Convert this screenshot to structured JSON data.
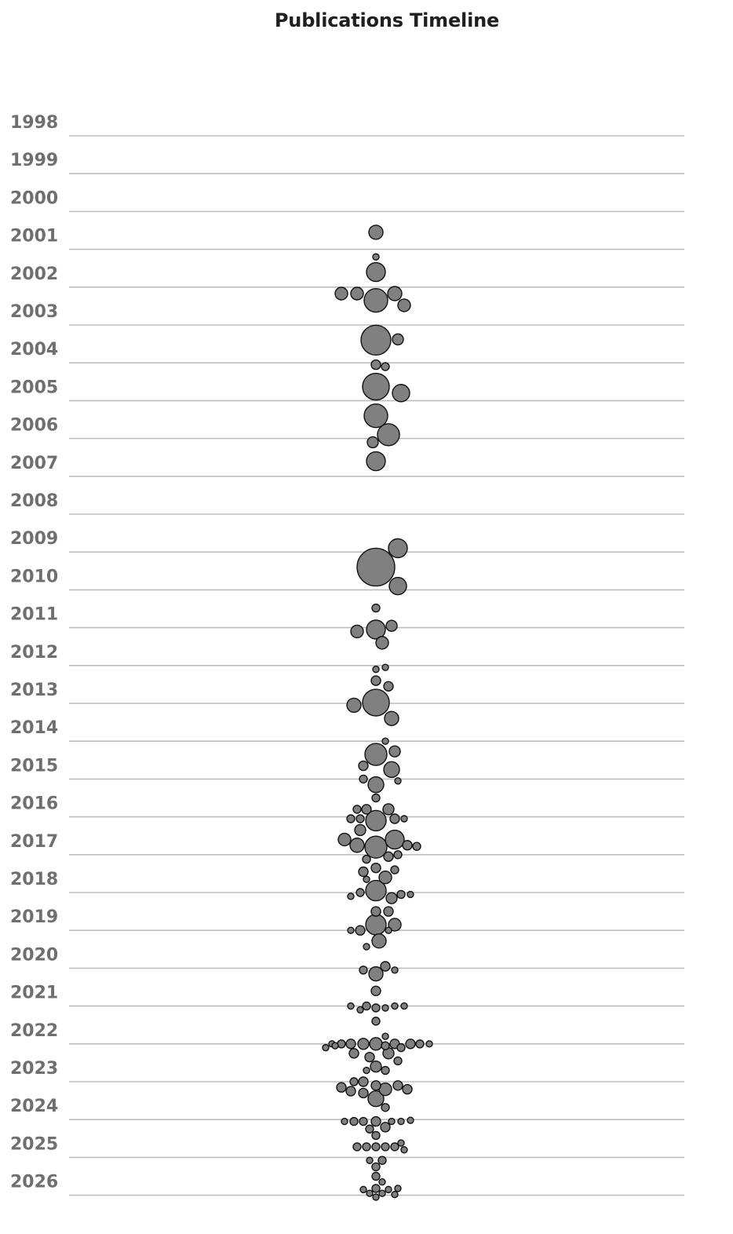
{
  "chart_data": {
    "type": "scatter",
    "subtype": "beeswarm",
    "title": "Publications Timeline",
    "y_axis": {
      "categories": [
        "1998",
        "1999",
        "2000",
        "2001",
        "2002",
        "2003",
        "2004",
        "2005",
        "2006",
        "2007",
        "2008",
        "2009",
        "2010",
        "2011",
        "2012",
        "2013",
        "2014",
        "2015",
        "2016",
        "2017",
        "2018",
        "2019",
        "2020",
        "2021",
        "2022",
        "2023",
        "2024",
        "2025",
        "2026"
      ],
      "range": [
        1998,
        2026
      ]
    },
    "grid": true,
    "legend": "none",
    "colors": {
      "bubble_fill": "#808080",
      "bubble_stroke": "#111111",
      "grid": "#bdbdbd",
      "label": "#6f6f6f"
    },
    "points": [
      {
        "year": 2000.55,
        "offset": 0,
        "size": 9
      },
      {
        "year": 2001.2,
        "offset": 0,
        "size": 4
      },
      {
        "year": 2001.6,
        "offset": 0,
        "size": 12
      },
      {
        "year": 2002.17,
        "offset": -44,
        "size": 8
      },
      {
        "year": 2002.17,
        "offset": -24,
        "size": 8
      },
      {
        "year": 2002.17,
        "offset": 24,
        "size": 9
      },
      {
        "year": 2002.35,
        "offset": 0,
        "size": 15
      },
      {
        "year": 2002.48,
        "offset": 36,
        "size": 8
      },
      {
        "year": 2003.4,
        "offset": 0,
        "size": 19
      },
      {
        "year": 2003.38,
        "offset": 28,
        "size": 7
      },
      {
        "year": 2004.05,
        "offset": 0,
        "size": 6
      },
      {
        "year": 2004.1,
        "offset": 12,
        "size": 5
      },
      {
        "year": 2004.63,
        "offset": 0,
        "size": 17
      },
      {
        "year": 2004.8,
        "offset": 32,
        "size": 11
      },
      {
        "year": 2005.4,
        "offset": 0,
        "size": 15
      },
      {
        "year": 2005.9,
        "offset": 16,
        "size": 14
      },
      {
        "year": 2006.1,
        "offset": -4,
        "size": 7
      },
      {
        "year": 2006.6,
        "offset": 0,
        "size": 12
      },
      {
        "year": 2008.9,
        "offset": 28,
        "size": 12
      },
      {
        "year": 2009.4,
        "offset": 0,
        "size": 24
      },
      {
        "year": 2009.9,
        "offset": 28,
        "size": 11
      },
      {
        "year": 2010.48,
        "offset": 0,
        "size": 5
      },
      {
        "year": 2010.95,
        "offset": 20,
        "size": 7
      },
      {
        "year": 2011.05,
        "offset": 0,
        "size": 12
      },
      {
        "year": 2011.1,
        "offset": -24,
        "size": 8
      },
      {
        "year": 2011.4,
        "offset": 8,
        "size": 8
      },
      {
        "year": 2012.05,
        "offset": 12,
        "size": 4
      },
      {
        "year": 2012.1,
        "offset": 0,
        "size": 4
      },
      {
        "year": 2012.4,
        "offset": 0,
        "size": 6
      },
      {
        "year": 2012.55,
        "offset": 16,
        "size": 6
      },
      {
        "year": 2012.98,
        "offset": 0,
        "size": 17
      },
      {
        "year": 2013.05,
        "offset": -28,
        "size": 9
      },
      {
        "year": 2013.4,
        "offset": 20,
        "size": 9
      },
      {
        "year": 2014.0,
        "offset": 12,
        "size": 4
      },
      {
        "year": 2014.27,
        "offset": 24,
        "size": 7
      },
      {
        "year": 2014.35,
        "offset": 0,
        "size": 14
      },
      {
        "year": 2014.65,
        "offset": -16,
        "size": 6
      },
      {
        "year": 2014.75,
        "offset": 20,
        "size": 10
      },
      {
        "year": 2015.0,
        "offset": -16,
        "size": 5
      },
      {
        "year": 2015.05,
        "offset": 28,
        "size": 4
      },
      {
        "year": 2015.15,
        "offset": 0,
        "size": 10
      },
      {
        "year": 2015.5,
        "offset": 0,
        "size": 5
      },
      {
        "year": 2015.8,
        "offset": -24,
        "size": 5
      },
      {
        "year": 2015.8,
        "offset": -12,
        "size": 6
      },
      {
        "year": 2015.8,
        "offset": 16,
        "size": 7
      },
      {
        "year": 2016.05,
        "offset": -32,
        "size": 5
      },
      {
        "year": 2016.05,
        "offset": -20,
        "size": 5
      },
      {
        "year": 2016.05,
        "offset": 24,
        "size": 6
      },
      {
        "year": 2016.05,
        "offset": 36,
        "size": 4
      },
      {
        "year": 2016.1,
        "offset": 0,
        "size": 13
      },
      {
        "year": 2016.35,
        "offset": -20,
        "size": 7
      },
      {
        "year": 2016.6,
        "offset": -40,
        "size": 8
      },
      {
        "year": 2016.6,
        "offset": 24,
        "size": 12
      },
      {
        "year": 2016.75,
        "offset": -24,
        "size": 9
      },
      {
        "year": 2016.8,
        "offset": 0,
        "size": 14
      },
      {
        "year": 2016.75,
        "offset": 40,
        "size": 6
      },
      {
        "year": 2016.78,
        "offset": 52,
        "size": 5
      },
      {
        "year": 2017.0,
        "offset": 28,
        "size": 5
      },
      {
        "year": 2017.05,
        "offset": 16,
        "size": 6
      },
      {
        "year": 2017.12,
        "offset": -12,
        "size": 5
      },
      {
        "year": 2017.35,
        "offset": 0,
        "size": 6
      },
      {
        "year": 2017.4,
        "offset": 24,
        "size": 5
      },
      {
        "year": 2017.45,
        "offset": -16,
        "size": 6
      },
      {
        "year": 2017.6,
        "offset": 12,
        "size": 8
      },
      {
        "year": 2017.65,
        "offset": -12,
        "size": 4
      },
      {
        "year": 2017.95,
        "offset": 0,
        "size": 13
      },
      {
        "year": 2018.0,
        "offset": -20,
        "size": 5
      },
      {
        "year": 2018.05,
        "offset": 32,
        "size": 5
      },
      {
        "year": 2018.05,
        "offset": 44,
        "size": 4
      },
      {
        "year": 2018.1,
        "offset": -32,
        "size": 4
      },
      {
        "year": 2018.15,
        "offset": 20,
        "size": 7
      },
      {
        "year": 2018.5,
        "offset": 0,
        "size": 6
      },
      {
        "year": 2018.5,
        "offset": 16,
        "size": 6
      },
      {
        "year": 2018.85,
        "offset": 24,
        "size": 8
      },
      {
        "year": 2018.85,
        "offset": 0,
        "size": 13
      },
      {
        "year": 2019.0,
        "offset": -20,
        "size": 6
      },
      {
        "year": 2019.0,
        "offset": -32,
        "size": 4
      },
      {
        "year": 2019.0,
        "offset": 16,
        "size": 4
      },
      {
        "year": 2019.28,
        "offset": 4,
        "size": 9
      },
      {
        "year": 2019.43,
        "offset": -12,
        "size": 4
      },
      {
        "year": 2019.95,
        "offset": 12,
        "size": 6
      },
      {
        "year": 2020.05,
        "offset": -16,
        "size": 5
      },
      {
        "year": 2020.05,
        "offset": 24,
        "size": 4
      },
      {
        "year": 2020.15,
        "offset": 0,
        "size": 9
      },
      {
        "year": 2020.6,
        "offset": 0,
        "size": 6
      },
      {
        "year": 2021.0,
        "offset": -32,
        "size": 4
      },
      {
        "year": 2021.0,
        "offset": -12,
        "size": 5
      },
      {
        "year": 2021.0,
        "offset": 24,
        "size": 4
      },
      {
        "year": 2021.0,
        "offset": 36,
        "size": 4
      },
      {
        "year": 2021.05,
        "offset": 0,
        "size": 5
      },
      {
        "year": 2021.05,
        "offset": 12,
        "size": 4
      },
      {
        "year": 2021.1,
        "offset": -20,
        "size": 4
      },
      {
        "year": 2021.4,
        "offset": 0,
        "size": 5
      },
      {
        "year": 2021.8,
        "offset": 12,
        "size": 4
      },
      {
        "year": 2022.0,
        "offset": -56,
        "size": 4
      },
      {
        "year": 2022.0,
        "offset": -44,
        "size": 5
      },
      {
        "year": 2022.0,
        "offset": -32,
        "size": 6
      },
      {
        "year": 2022.0,
        "offset": -16,
        "size": 7
      },
      {
        "year": 2022.0,
        "offset": 0,
        "size": 8
      },
      {
        "year": 2022.0,
        "offset": 24,
        "size": 6
      },
      {
        "year": 2022.0,
        "offset": 44,
        "size": 6
      },
      {
        "year": 2022.0,
        "offset": 56,
        "size": 5
      },
      {
        "year": 2022.0,
        "offset": 68,
        "size": 4
      },
      {
        "year": 2022.05,
        "offset": 12,
        "size": 5
      },
      {
        "year": 2022.05,
        "offset": -52,
        "size": 4
      },
      {
        "year": 2022.1,
        "offset": -64,
        "size": 4
      },
      {
        "year": 2022.1,
        "offset": 32,
        "size": 5
      },
      {
        "year": 2022.25,
        "offset": -28,
        "size": 6
      },
      {
        "year": 2022.25,
        "offset": 16,
        "size": 7
      },
      {
        "year": 2022.35,
        "offset": -8,
        "size": 6
      },
      {
        "year": 2022.45,
        "offset": 28,
        "size": 5
      },
      {
        "year": 2022.6,
        "offset": 0,
        "size": 7
      },
      {
        "year": 2022.7,
        "offset": 12,
        "size": 5
      },
      {
        "year": 2022.7,
        "offset": -12,
        "size": 4
      },
      {
        "year": 2023.0,
        "offset": -28,
        "size": 5
      },
      {
        "year": 2023.0,
        "offset": -16,
        "size": 6
      },
      {
        "year": 2023.1,
        "offset": 0,
        "size": 6
      },
      {
        "year": 2023.1,
        "offset": 28,
        "size": 6
      },
      {
        "year": 2023.15,
        "offset": -44,
        "size": 6
      },
      {
        "year": 2023.2,
        "offset": 12,
        "size": 8
      },
      {
        "year": 2023.2,
        "offset": 40,
        "size": 6
      },
      {
        "year": 2023.25,
        "offset": -32,
        "size": 6
      },
      {
        "year": 2023.3,
        "offset": -16,
        "size": 6
      },
      {
        "year": 2023.45,
        "offset": 0,
        "size": 10
      },
      {
        "year": 2023.68,
        "offset": 12,
        "size": 5
      },
      {
        "year": 2024.05,
        "offset": -40,
        "size": 4
      },
      {
        "year": 2024.05,
        "offset": -28,
        "size": 5
      },
      {
        "year": 2024.05,
        "offset": -16,
        "size": 5
      },
      {
        "year": 2024.05,
        "offset": 0,
        "size": 6
      },
      {
        "year": 2024.05,
        "offset": 20,
        "size": 4
      },
      {
        "year": 2024.05,
        "offset": 32,
        "size": 4
      },
      {
        "year": 2024.02,
        "offset": 44,
        "size": 4
      },
      {
        "year": 2024.25,
        "offset": -8,
        "size": 5
      },
      {
        "year": 2024.2,
        "offset": 12,
        "size": 6
      },
      {
        "year": 2024.42,
        "offset": 0,
        "size": 5
      },
      {
        "year": 2024.72,
        "offset": -24,
        "size": 5
      },
      {
        "year": 2024.72,
        "offset": -12,
        "size": 5
      },
      {
        "year": 2024.72,
        "offset": 0,
        "size": 5
      },
      {
        "year": 2024.72,
        "offset": 12,
        "size": 5
      },
      {
        "year": 2024.72,
        "offset": 24,
        "size": 5
      },
      {
        "year": 2024.62,
        "offset": 32,
        "size": 4
      },
      {
        "year": 2024.8,
        "offset": 36,
        "size": 4
      },
      {
        "year": 2025.08,
        "offset": -8,
        "size": 4
      },
      {
        "year": 2025.08,
        "offset": 8,
        "size": 5
      },
      {
        "year": 2025.25,
        "offset": 0,
        "size": 5
      },
      {
        "year": 2025.5,
        "offset": 0,
        "size": 5
      },
      {
        "year": 2025.65,
        "offset": 8,
        "size": 4
      },
      {
        "year": 2025.85,
        "offset": -16,
        "size": 4
      },
      {
        "year": 2025.82,
        "offset": 0,
        "size": 5
      },
      {
        "year": 2025.85,
        "offset": 16,
        "size": 4
      },
      {
        "year": 2025.82,
        "offset": 28,
        "size": 4
      },
      {
        "year": 2025.95,
        "offset": -8,
        "size": 4
      },
      {
        "year": 2025.95,
        "offset": 8,
        "size": 4
      },
      {
        "year": 2025.98,
        "offset": 24,
        "size": 4
      },
      {
        "year": 2026.05,
        "offset": 0,
        "size": 4
      }
    ]
  }
}
